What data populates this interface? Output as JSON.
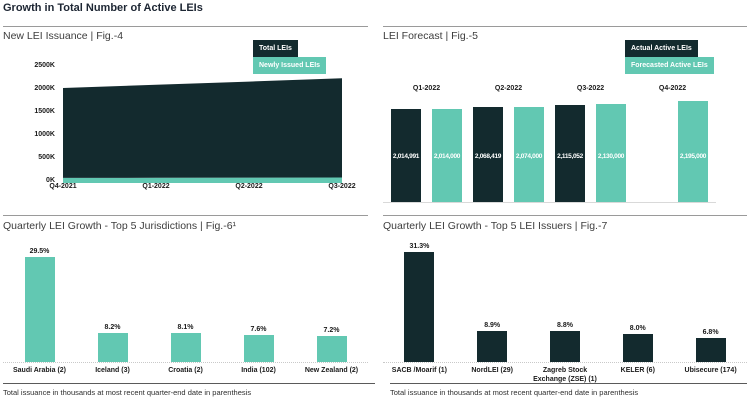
{
  "header": {
    "title": "Growth in Total Number of Active LEIs"
  },
  "footnote": "Total issuance in thousands at most recent quarter-end date in parenthesis",
  "colors": {
    "dark": "#132a2e",
    "teal": "#62c8b2"
  },
  "chart_data": [
    {
      "id": "fig4",
      "type": "area",
      "title": "New LEI Issuance | Fig.-4",
      "categories": [
        "Q4-2021",
        "Q1-2022",
        "Q2-2022",
        "Q3-2022"
      ],
      "series": [
        {
          "name": "Total LEIs",
          "color": "#132a2e",
          "values_thousands": [
            2000,
            2070,
            2140,
            2210
          ]
        },
        {
          "name": "Newly Issued LEIs",
          "color": "#62c8b2",
          "values_thousands": [
            45,
            48,
            52,
            55
          ]
        }
      ],
      "ylabel_ticks": [
        "0K",
        "500K",
        "1000K",
        "1500K",
        "2000K",
        "2500K"
      ],
      "ylim_thousands": [
        0,
        2500
      ],
      "grid": false,
      "legend_position": "top-right"
    },
    {
      "id": "fig5",
      "type": "bar",
      "title": "LEI Forecast | Fig.-5",
      "categories": [
        "Q1-2022",
        "Q2-2022",
        "Q3-2022",
        "Q4-2022"
      ],
      "series": [
        {
          "name": "Actual Active LEIs",
          "color": "#132a2e",
          "values": [
            2014991,
            2068419,
            2115052,
            null
          ],
          "labels": [
            "2,014,991",
            "2,068,419",
            "2,115,052",
            null
          ]
        },
        {
          "name": "Forecasted Active LEIs",
          "color": "#62c8b2",
          "values": [
            2014000,
            2074000,
            2130000,
            2195000
          ],
          "labels": [
            "2,014,000",
            "2,074,000",
            "2,130,000",
            "2,195,000"
          ]
        }
      ],
      "legend_position": "top-right"
    },
    {
      "id": "fig6",
      "type": "bar",
      "title": "Quarterly LEI Growth - Top 5 Jurisdictions | Fig.-6¹",
      "categories": [
        "Saudi Arabia (2)",
        "Iceland (3)",
        "Croatia (2)",
        "India (102)",
        "New Zealand (2)"
      ],
      "values_percent": [
        29.5,
        8.2,
        8.1,
        7.6,
        7.2
      ],
      "labels": [
        "29.5%",
        "8.2%",
        "8.1%",
        "7.6%",
        "7.2%"
      ],
      "bar_color": "#62c8b2"
    },
    {
      "id": "fig7",
      "type": "bar",
      "title": "Quarterly LEI Growth - Top 5 LEI Issuers | Fig.-7",
      "categories": [
        "SACB /Moarif (1)",
        "NordLEI (29)",
        "Zagreb Stock Exchange (ZSE) (1)",
        "KELER (6)",
        "Ubisecure (174)"
      ],
      "values_percent": [
        31.3,
        8.9,
        8.8,
        8.0,
        6.8
      ],
      "labels": [
        "31.3%",
        "8.9%",
        "8.8%",
        "8.0%",
        "6.8%"
      ],
      "bar_color": "#132a2e"
    }
  ]
}
